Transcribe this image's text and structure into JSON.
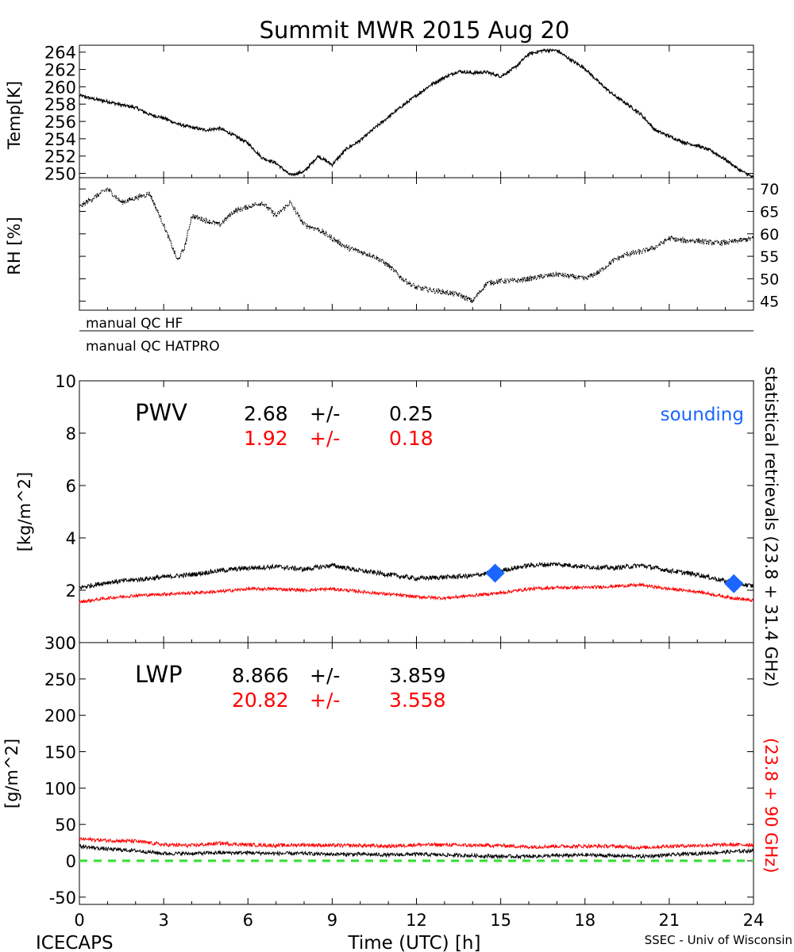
{
  "title": "Summit MWR 2015 Aug 20",
  "footer": {
    "left": "ICECAPS",
    "center": "Time (UTC) [h]",
    "right": "SSEC - Univ of Wisconsin"
  },
  "qc": {
    "hf": "manual QC HF",
    "hatpro": "manual QC HATPRO"
  },
  "right_side": {
    "black": "statistical retrievals (23.8 + 31.4 GHz)",
    "red": "(23.8 + 90 GHz)"
  },
  "pwv_stats": {
    "label": "PWV",
    "black_mean": "2.68",
    "black_pm": "+/-",
    "black_sd": "0.25",
    "red_mean": "1.92",
    "red_pm": "+/-",
    "red_sd": "0.18",
    "sounding_label": "sounding"
  },
  "lwp_stats": {
    "label": "LWP",
    "black_mean": "8.866",
    "black_pm": "+/-",
    "black_sd": "3.859",
    "red_mean": "20.82",
    "red_pm": "+/-",
    "red_sd": "3.558"
  },
  "colors": {
    "black_series": "#000000",
    "red_series": "#ff0000",
    "sounding": "#1a66ff",
    "zero_line": "#33dd33"
  },
  "chart_data": [
    {
      "type": "line",
      "ylabel": "Temp[K]",
      "xlim": [
        0,
        24
      ],
      "ylim": [
        249.5,
        264.8
      ],
      "y_ticks": [
        250,
        252,
        254,
        256,
        258,
        260,
        262,
        264
      ],
      "x": [
        0,
        0.5,
        1,
        1.5,
        2,
        2.5,
        3,
        3.5,
        4,
        4.5,
        5,
        5.5,
        6,
        6.5,
        7,
        7.5,
        8,
        8.5,
        9,
        9.5,
        10,
        10.5,
        11,
        11.5,
        12,
        12.5,
        13,
        13.5,
        14,
        14.5,
        15,
        15.5,
        16,
        16.5,
        17,
        17.5,
        18,
        18.5,
        19,
        19.5,
        20,
        20.5,
        21,
        21.5,
        22,
        22.5,
        23,
        23.5,
        24
      ],
      "values": [
        259,
        258.6,
        258.3,
        257.9,
        257.6,
        256.8,
        256.4,
        255.7,
        255.3,
        255,
        255.2,
        254.4,
        253.5,
        251.8,
        251.2,
        249.8,
        250.2,
        252,
        251,
        252.8,
        253.8,
        255.2,
        256.5,
        257.8,
        259,
        260.2,
        261.1,
        261.8,
        261.6,
        261.7,
        261.2,
        262.2,
        263.8,
        264.2,
        264.2,
        263.1,
        262.1,
        260.5,
        259.1,
        258,
        256.8,
        255,
        254.3,
        253.6,
        253.2,
        252.6,
        251.6,
        250.4,
        249.5
      ]
    },
    {
      "type": "line",
      "ylabel": "RH [%]",
      "xlim": [
        0,
        24
      ],
      "ylim": [
        43,
        72.5
      ],
      "y_ticks": [
        45,
        50,
        55,
        60,
        65,
        70
      ],
      "x": [
        0,
        0.5,
        1,
        1.5,
        2,
        2.5,
        3,
        3.25,
        3.5,
        3.75,
        4,
        4.5,
        5,
        5.5,
        6,
        6.5,
        7,
        7.5,
        8,
        8.5,
        9,
        9.5,
        10,
        10.5,
        11,
        11.5,
        12,
        12.5,
        13,
        13.5,
        14,
        14.5,
        15,
        15.5,
        16,
        16.5,
        17,
        17.5,
        18,
        18.5,
        19,
        19.5,
        20,
        20.5,
        21,
        21.5,
        22,
        22.5,
        23,
        23.5,
        24
      ],
      "values": [
        66,
        68,
        70,
        67,
        68,
        69,
        62,
        58,
        54,
        57,
        64,
        63,
        62,
        65,
        66,
        67,
        64,
        67,
        62,
        61,
        59,
        57,
        56,
        55,
        53,
        50,
        48,
        47.5,
        47,
        46.5,
        45,
        49,
        49.5,
        49.5,
        50,
        50.5,
        51,
        50.5,
        50,
        51.5,
        54,
        55.5,
        56,
        57,
        59,
        58.5,
        58.5,
        58,
        58,
        58.5,
        59
      ]
    },
    {
      "type": "line",
      "ylabel": "[kg/m^2]",
      "xlim": [
        0,
        24
      ],
      "ylim": [
        0,
        10
      ],
      "y_ticks": [
        0,
        2,
        4,
        6,
        8,
        10
      ],
      "x_ticks": [
        0,
        3,
        6,
        9,
        12,
        15,
        18,
        21,
        24
      ],
      "x": [
        0,
        1,
        2,
        3,
        4,
        5,
        6,
        7,
        8,
        9,
        10,
        11,
        12,
        13,
        14,
        15,
        16,
        17,
        18,
        19,
        20,
        21,
        22,
        23,
        24
      ],
      "series": [
        {
          "values": [
            2.1,
            2.3,
            2.4,
            2.5,
            2.6,
            2.75,
            2.85,
            2.9,
            2.8,
            2.95,
            2.75,
            2.6,
            2.45,
            2.5,
            2.55,
            2.75,
            2.95,
            3.0,
            2.9,
            2.85,
            2.95,
            2.75,
            2.6,
            2.35,
            2.15
          ]
        },
        {
          "values": [
            1.55,
            1.7,
            1.8,
            1.85,
            1.9,
            1.95,
            2.05,
            2.05,
            2.0,
            2.05,
            1.95,
            1.85,
            1.75,
            1.7,
            1.8,
            1.9,
            2.05,
            2.1,
            2.1,
            2.15,
            2.2,
            2.05,
            1.95,
            1.75,
            1.6
          ]
        }
      ],
      "sounding_points": [
        {
          "x": 14.8,
          "y": 2.65
        },
        {
          "x": 23.3,
          "y": 2.25
        }
      ]
    },
    {
      "type": "line",
      "ylabel": "[g/m^2]",
      "xlabel": "Time (UTC) [h]",
      "xlim": [
        0,
        24
      ],
      "ylim": [
        -60,
        300
      ],
      "y_ticks": [
        -50,
        0,
        50,
        100,
        150,
        200,
        250,
        300
      ],
      "x_ticks": [
        0,
        3,
        6,
        9,
        12,
        15,
        18,
        21,
        24
      ],
      "x": [
        0,
        1,
        2,
        3,
        4,
        5,
        6,
        7,
        8,
        9,
        10,
        11,
        12,
        13,
        14,
        15,
        16,
        17,
        18,
        19,
        20,
        21,
        22,
        23,
        24
      ],
      "series": [
        {
          "values": [
            20,
            16,
            14,
            10,
            10,
            11,
            11,
            10,
            10,
            9,
            9,
            8,
            9,
            8,
            7,
            6,
            6,
            7,
            8,
            7,
            6,
            8,
            10,
            12,
            14
          ]
        },
        {
          "values": [
            30,
            28,
            27,
            22,
            21,
            24,
            22,
            21,
            22,
            21,
            21,
            20,
            22,
            22,
            21,
            21,
            19,
            20,
            20,
            20,
            18,
            20,
            21,
            22,
            22
          ]
        }
      ],
      "zero_line": 0
    }
  ]
}
